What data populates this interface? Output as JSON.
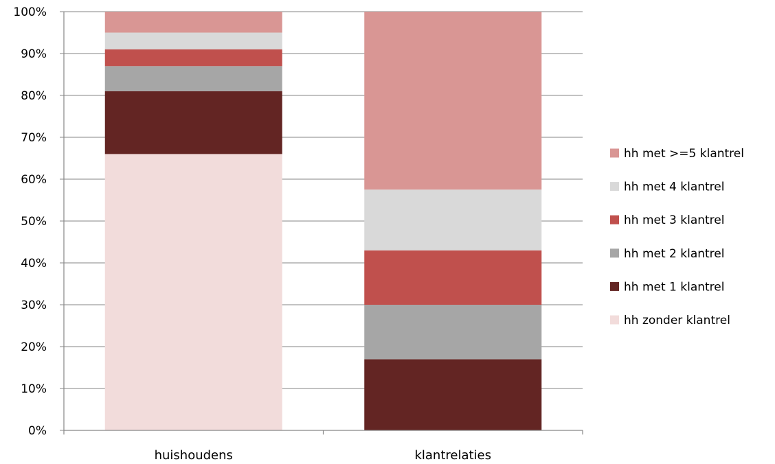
{
  "chart_data": {
    "type": "bar",
    "stacked": true,
    "percent": true,
    "categories": [
      "huishoudens",
      "klantrelaties"
    ],
    "ylim": [
      0,
      100
    ],
    "yticks": [
      "0%",
      "10%",
      "20%",
      "30%",
      "40%",
      "50%",
      "60%",
      "70%",
      "80%",
      "90%",
      "100%"
    ],
    "grid": true,
    "legend_position": "right",
    "series": [
      {
        "name": "hh zonder klantrel",
        "color": "#f2dcdb",
        "values": [
          66,
          0
        ]
      },
      {
        "name": "hh met 1 klantrel",
        "color": "#632523",
        "values": [
          15,
          17
        ]
      },
      {
        "name": "hh met 2 klantrel",
        "color": "#a6a6a6",
        "values": [
          6,
          13
        ]
      },
      {
        "name": "hh met 3 klantrel",
        "color": "#c0504d",
        "values": [
          4,
          13
        ]
      },
      {
        "name": "hh met 4 klantrel",
        "color": "#d9d9d9",
        "values": [
          4,
          14.5
        ]
      },
      {
        "name": "hh met >=5 klantrel",
        "color": "#d99694",
        "values": [
          5,
          42.5
        ]
      }
    ]
  }
}
